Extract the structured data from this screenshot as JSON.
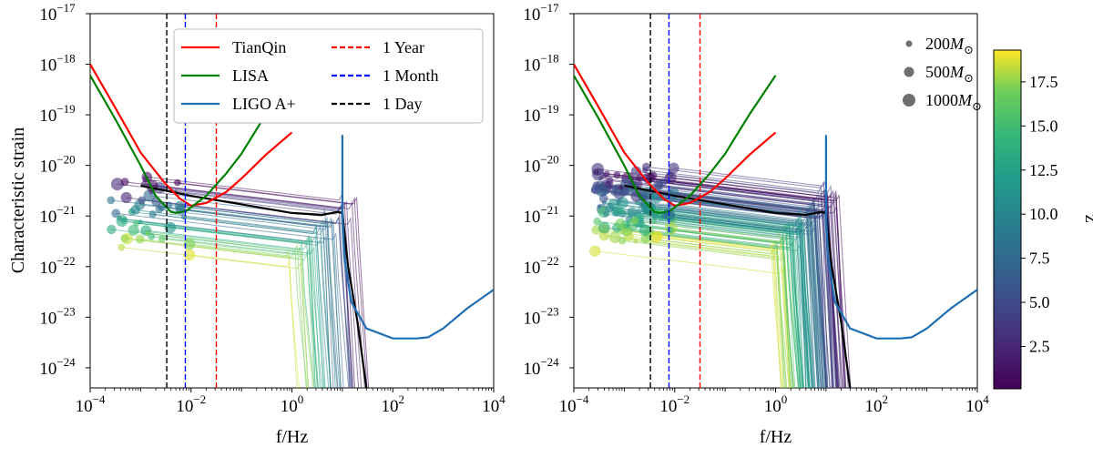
{
  "chart_data": {
    "type": "line",
    "xscale": "log",
    "yscale": "log",
    "xlim": [
      0.0001,
      10000
    ],
    "ylim": [
      4e-25,
      1e-17
    ],
    "xlabel": "f/Hz",
    "ylabel": "Characteristic strain",
    "x_ticks": [
      {
        "value": 0.0001,
        "base": "10",
        "exp": "−4"
      },
      {
        "value": 0.01,
        "base": "10",
        "exp": "−2"
      },
      {
        "value": 1,
        "base": "10",
        "exp": "0"
      },
      {
        "value": 100,
        "base": "10",
        "exp": "2"
      },
      {
        "value": 10000,
        "base": "10",
        "exp": "4"
      }
    ],
    "y_ticks": [
      {
        "value": 1e-24,
        "base": "10",
        "exp": "−24"
      },
      {
        "value": 1e-23,
        "base": "10",
        "exp": "−23"
      },
      {
        "value": 1e-22,
        "base": "10",
        "exp": "−22"
      },
      {
        "value": 1e-21,
        "base": "10",
        "exp": "−21"
      },
      {
        "value": 1e-20,
        "base": "10",
        "exp": "−20"
      },
      {
        "value": 1e-19,
        "base": "10",
        "exp": "−19"
      },
      {
        "value": 1e-18,
        "base": "10",
        "exp": "−18"
      },
      {
        "value": 1e-17,
        "base": "10",
        "exp": "−17"
      }
    ],
    "detectors": [
      {
        "name": "TianQin",
        "color": "#ff0000",
        "points": [
          [
            0.0001,
            1e-18
          ],
          [
            0.0003,
            1.5e-19
          ],
          [
            0.001,
            1.8e-20
          ],
          [
            0.003,
            4.5e-21
          ],
          [
            0.006,
            2.2e-21
          ],
          [
            0.01,
            1.6e-21
          ],
          [
            0.02,
            1.8e-21
          ],
          [
            0.05,
            3e-21
          ],
          [
            0.1,
            5.5e-21
          ],
          [
            0.3,
            1.6e-20
          ],
          [
            1,
            4.5e-20
          ]
        ]
      },
      {
        "name": "LISA",
        "color": "#008000",
        "points": [
          [
            0.0001,
            6e-19
          ],
          [
            0.0003,
            9e-20
          ],
          [
            0.001,
            1e-20
          ],
          [
            0.002,
            2.5e-21
          ],
          [
            0.004,
            1.2e-21
          ],
          [
            0.005,
            1.15e-21
          ],
          [
            0.008,
            1.25e-21
          ],
          [
            0.02,
            2.5e-21
          ],
          [
            0.05,
            7e-21
          ],
          [
            0.1,
            1.7e-20
          ],
          [
            0.3,
            1e-19
          ],
          [
            1,
            6e-19
          ]
        ]
      },
      {
        "name": "LIGO A+",
        "color": "#1f6fb2",
        "points": [
          [
            10,
            4e-20
          ],
          [
            10,
            1e-21
          ],
          [
            11,
            1.5e-22
          ],
          [
            15,
            2e-23
          ],
          [
            30,
            6e-24
          ],
          [
            100,
            3.8e-24
          ],
          [
            300,
            3.8e-24
          ],
          [
            500,
            4e-24
          ],
          [
            1000,
            6e-24
          ],
          [
            3000,
            1.5e-23
          ],
          [
            10000,
            3.5e-23
          ]
        ]
      }
    ],
    "observation_lines": [
      {
        "label": "1 Year",
        "frequency": 0.0317,
        "color": "#ff0000",
        "dash": "dashed"
      },
      {
        "label": "1 Month",
        "frequency": 0.0077,
        "color": "#0000ff",
        "dash": "dashed"
      },
      {
        "label": "1 Day",
        "frequency": 0.0033,
        "color": "#000000",
        "dash": "dashed"
      }
    ],
    "legend": {
      "location": "top",
      "entries": [
        "TianQin",
        "LISA",
        "LIGO A+",
        "1 Year",
        "1 Month",
        "1 Day"
      ]
    },
    "reference_track": {
      "color": "#000000",
      "points": [
        [
          0.001,
          4e-21
        ],
        [
          0.003,
          3.2e-21
        ],
        [
          0.01,
          2.5e-21
        ],
        [
          0.1,
          1.7e-21
        ],
        [
          1,
          1.15e-21
        ],
        [
          4,
          1.05e-21
        ],
        [
          8,
          1.2e-21
        ],
        [
          10,
          1.15e-21
        ],
        [
          13,
          1e-22
        ],
        [
          20,
          8e-24
        ],
        [
          30,
          4e-25
        ]
      ]
    },
    "panels": [
      {
        "name": "left",
        "n_tracks": 45,
        "seed": 7,
        "ymax_factor": 1,
        "show_legend": true,
        "show_ylabel": true
      },
      {
        "name": "right",
        "n_tracks": 120,
        "seed": 19,
        "ymax_factor": 3,
        "show_legend": false,
        "show_ylabel": false
      }
    ],
    "size_legend": {
      "location": "top-right",
      "entries": [
        {
          "mass": "200",
          "label": "200",
          "unit": "M",
          "subscript": "⊙"
        },
        {
          "mass": "500",
          "label": "500",
          "unit": "M",
          "subscript": "⊙"
        },
        {
          "mass": "1000",
          "label": "1000",
          "unit": "M",
          "subscript": "⊙"
        }
      ]
    },
    "colorbar": {
      "label": "z",
      "colormap": "viridis",
      "range": [
        0.1,
        19.3
      ],
      "ticks": [
        "2.5",
        "5.0",
        "7.5",
        "10.0",
        "12.5",
        "15.0",
        "17.5"
      ],
      "tick_values": [
        2.5,
        5,
        7.5,
        10,
        12.5,
        15,
        17.5
      ]
    }
  }
}
